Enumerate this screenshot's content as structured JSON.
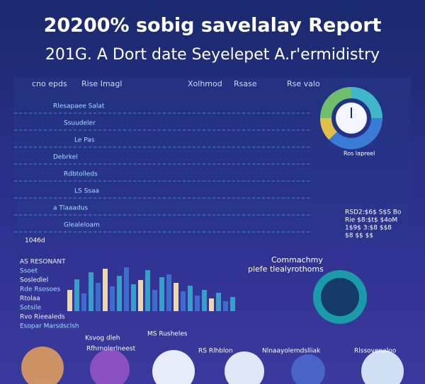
{
  "header": {
    "title": "20200% sobig savelalay Report",
    "subtitle": "201G. A Dort date Seyelepet A.r'ermidistry"
  },
  "table": {
    "columns": [
      "cno epds",
      "Rise Imagl",
      "Xolhmod",
      "Rsase",
      "Rse valo"
    ],
    "rows": [
      "Rlesapaee Salat",
      "Ssuudeler",
      "Le Pas",
      "Debrkel",
      "Rdbtolleds",
      "LS Ssaa",
      "a Tlaaadus",
      "Glealeloam"
    ],
    "footer": "1046d"
  },
  "side_panel": {
    "title": "Ros Iapreel",
    "lines": [
      "RSD2:$6$ S$S Bo",
      "Rie $8:$t$ $4oM",
      "1$9$ 3:$8 $$8",
      "$8 $$ $$"
    ]
  },
  "chart_panel": {
    "title": "Commachmy",
    "subtitle": "plefe tlealyrothoms"
  },
  "legend_list": [
    "AS RESONANT",
    "Ssoet",
    "Sosledlel",
    "Rde Rsosoes",
    "Rtolaa",
    "Sotsile",
    "Rvo Rieealeds",
    "Esopar Marsdsclsh"
  ],
  "bottom_cards": [
    "Ksvog dleh",
    "Rfhrnolerlneest",
    "MS Rusheles",
    "RS Rlhblon",
    "Nlnaayolemdslliak",
    "Rlssovenaloo"
  ]
}
